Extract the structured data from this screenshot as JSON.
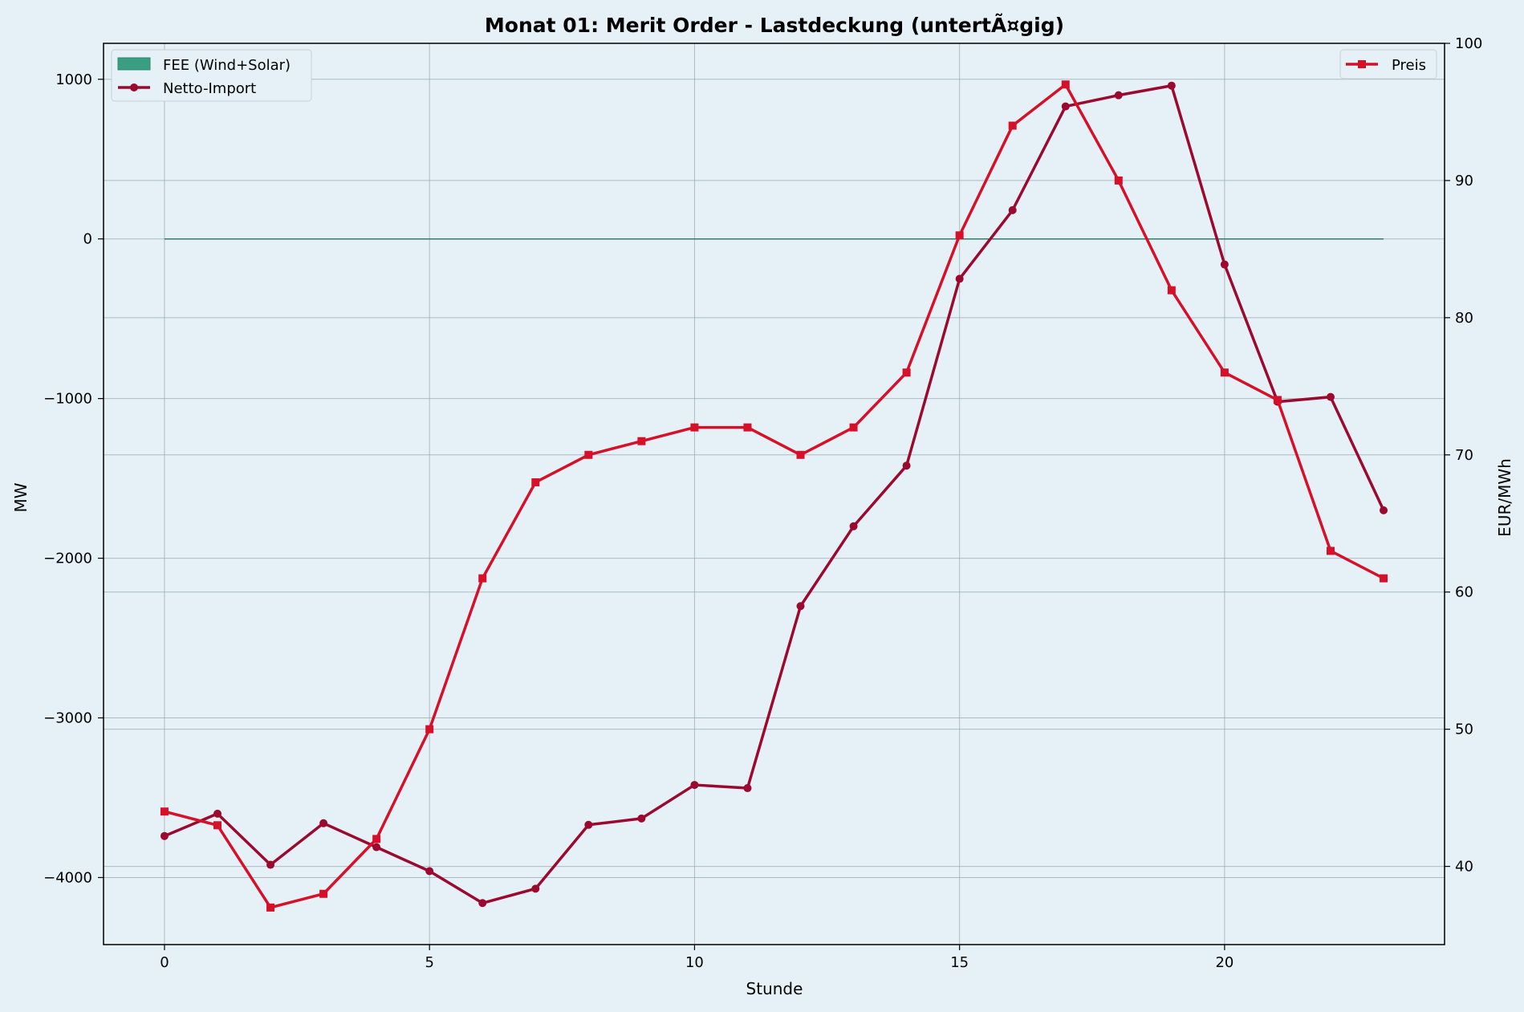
{
  "chart_data": {
    "type": "line",
    "title": "Monat 01: Merit Order - Lastdeckung (untertÃ¤gig)",
    "xlabel": "Stunde",
    "ylabel": "MW",
    "y2label": "EUR/MWh",
    "x": [
      0,
      1,
      2,
      3,
      4,
      5,
      6,
      7,
      8,
      9,
      10,
      11,
      12,
      13,
      14,
      15,
      16,
      17,
      18,
      19,
      20,
      21,
      22,
      23
    ],
    "xlim": [
      -1.15,
      24.15
    ],
    "ylim": [
      -4420,
      1225
    ],
    "y2lim": [
      34.3,
      100
    ],
    "x_ticks": [
      0,
      5,
      10,
      15,
      20
    ],
    "y_ticks": [
      1000,
      0,
      -1000,
      -2000,
      -3000,
      -4000
    ],
    "y_tick_labels": [
      "1000",
      "0",
      "−1000",
      "−2000",
      "−3000",
      "−4000"
    ],
    "y2_ticks": [
      40,
      50,
      60,
      70,
      80,
      90,
      100
    ],
    "grid": true,
    "series": [
      {
        "name": "FEE (Wind+Solar)",
        "kind": "area",
        "axis": "left",
        "color": "#3a9e82",
        "values": [
          0,
          0,
          0,
          0,
          0,
          0,
          0,
          0,
          0,
          0,
          0,
          0,
          0,
          0,
          0,
          0,
          0,
          0,
          0,
          0,
          0,
          0,
          0,
          0
        ]
      },
      {
        "name": "Netto-Import",
        "kind": "line",
        "marker": "circle",
        "axis": "left",
        "color": "#9b0a2e",
        "values": [
          -3740,
          -3600,
          -3920,
          -3660,
          -3810,
          -3960,
          -4160,
          -4070,
          -3670,
          -3630,
          -3420,
          -3440,
          -2300,
          -1800,
          -1420,
          -250,
          180,
          830,
          900,
          960,
          -160,
          -1020,
          -990,
          -1700
        ]
      },
      {
        "name": "Preis",
        "kind": "line",
        "marker": "square",
        "axis": "right",
        "color": "#d7102a",
        "values": [
          44,
          43,
          37,
          38,
          42,
          50,
          61,
          68,
          70,
          71,
          72,
          72,
          70,
          72,
          76,
          86,
          94,
          97,
          90,
          82,
          76,
          74,
          63,
          61
        ]
      }
    ],
    "legend_left": "upper left",
    "legend_right": "upper right"
  }
}
